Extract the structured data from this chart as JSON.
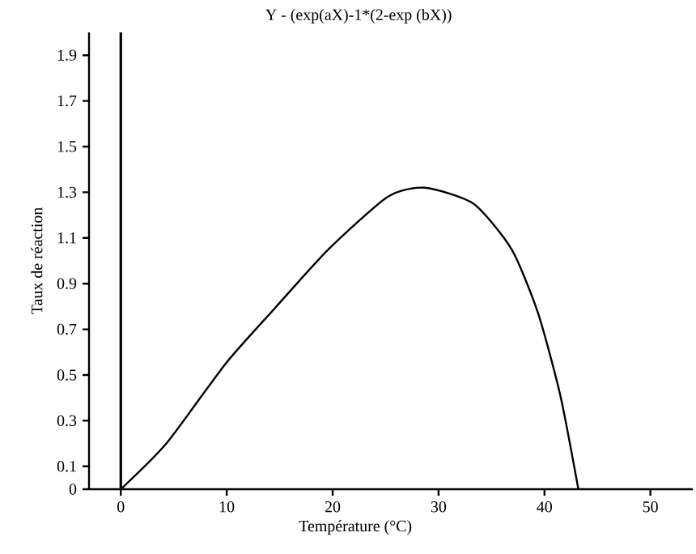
{
  "chart_data": {
    "type": "line",
    "title": "Y - (exp(aX)-1*(2-exp (bX))",
    "xlabel": "Température (°C)",
    "ylabel": "Taux de réaction",
    "x": [
      0,
      4.3,
      9.9,
      14.5,
      19.6,
      25.2,
      28.7,
      33.3,
      36.9,
      39.4,
      41.5,
      43.2
    ],
    "series": [
      {
        "color": "#000000",
        "values": [
          0,
          0.2,
          0.55,
          0.79,
          1.05,
          1.28,
          1.32,
          1.25,
          1.05,
          0.77,
          0.41,
          0
        ]
      }
    ],
    "xlim": [
      -3,
      54
    ],
    "ylim": [
      0,
      2
    ],
    "xticks": [
      0,
      10,
      20,
      30,
      40,
      50
    ],
    "yticks": [
      0,
      0.1,
      0.3,
      0.5,
      0.7,
      0.9,
      1.1,
      1.3,
      1.5,
      1.7,
      1.9
    ],
    "ref_lines": [
      {
        "axis": "x",
        "value": 0,
        "color": "#000000"
      }
    ],
    "grid": false,
    "marker": "none",
    "line_style": "solid"
  }
}
